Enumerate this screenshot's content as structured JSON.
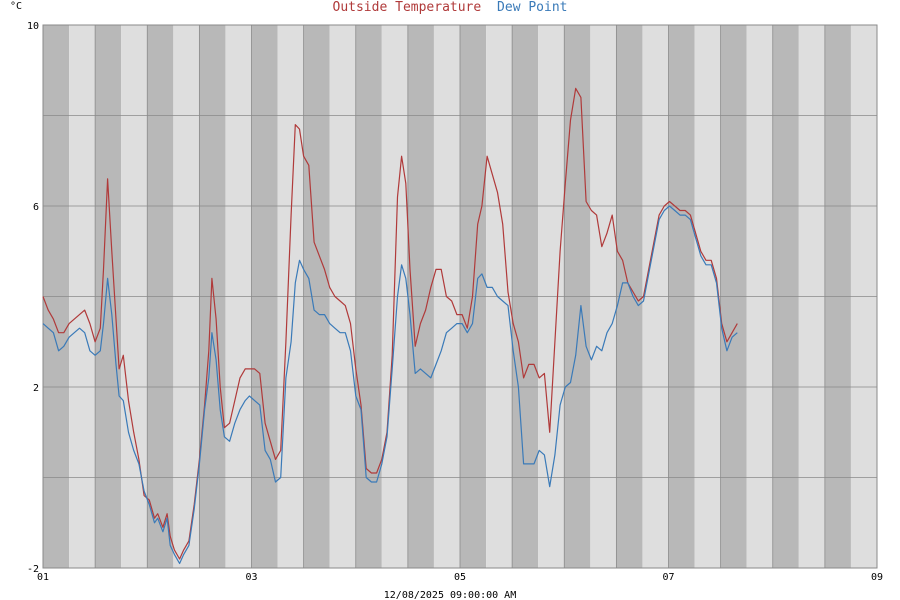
{
  "chart_data": {
    "type": "line",
    "title_parts": [
      {
        "text": "Outside Temperature",
        "color": "#b03a3a"
      },
      {
        "text": "Dew Point",
        "color": "#3a7ab8"
      }
    ],
    "unit": "°C",
    "footer": "12/08/2025 09:00:00 AM",
    "xlim": [
      1,
      9
    ],
    "ylim": [
      -2,
      10
    ],
    "x_ticks": [
      {
        "value": 1,
        "label": "01"
      },
      {
        "value": 3,
        "label": "03"
      },
      {
        "value": 5,
        "label": "05"
      },
      {
        "value": 7,
        "label": "07"
      },
      {
        "value": 9,
        "label": "09"
      }
    ],
    "y_ticks": [
      {
        "value": -2,
        "label": "-2"
      },
      {
        "value": 2,
        "label": "2"
      },
      {
        "value": 6,
        "label": "6"
      },
      {
        "value": 10,
        "label": "10"
      }
    ],
    "grid": true,
    "colors": {
      "band_dark": "#b8b8b8",
      "band_light": "#dedede",
      "grid": "#8a8a8a"
    },
    "series": [
      {
        "name": "Outside Temperature",
        "color": "#b03a3a",
        "points": [
          [
            1.0,
            4.0
          ],
          [
            1.05,
            3.7
          ],
          [
            1.1,
            3.5
          ],
          [
            1.15,
            3.2
          ],
          [
            1.2,
            3.2
          ],
          [
            1.25,
            3.4
          ],
          [
            1.3,
            3.5
          ],
          [
            1.35,
            3.6
          ],
          [
            1.4,
            3.7
          ],
          [
            1.45,
            3.4
          ],
          [
            1.5,
            3.0
          ],
          [
            1.55,
            3.3
          ],
          [
            1.58,
            4.6
          ],
          [
            1.62,
            6.6
          ],
          [
            1.66,
            5.0
          ],
          [
            1.7,
            3.5
          ],
          [
            1.73,
            2.4
          ],
          [
            1.77,
            2.7
          ],
          [
            1.82,
            1.7
          ],
          [
            1.87,
            1.0
          ],
          [
            1.92,
            0.4
          ],
          [
            1.97,
            -0.4
          ],
          [
            2.02,
            -0.5
          ],
          [
            2.07,
            -0.9
          ],
          [
            2.1,
            -0.8
          ],
          [
            2.15,
            -1.1
          ],
          [
            2.19,
            -0.8
          ],
          [
            2.22,
            -1.3
          ],
          [
            2.26,
            -1.6
          ],
          [
            2.31,
            -1.8
          ],
          [
            2.35,
            -1.6
          ],
          [
            2.4,
            -1.4
          ],
          [
            2.45,
            -0.6
          ],
          [
            2.5,
            0.4
          ],
          [
            2.55,
            1.6
          ],
          [
            2.59,
            2.8
          ],
          [
            2.62,
            4.4
          ],
          [
            2.66,
            3.5
          ],
          [
            2.7,
            2.0
          ],
          [
            2.74,
            1.1
          ],
          [
            2.79,
            1.2
          ],
          [
            2.84,
            1.7
          ],
          [
            2.89,
            2.2
          ],
          [
            2.94,
            2.4
          ],
          [
            2.98,
            2.4
          ],
          [
            3.03,
            2.4
          ],
          [
            3.08,
            2.3
          ],
          [
            3.13,
            1.2
          ],
          [
            3.18,
            0.8
          ],
          [
            3.23,
            0.4
          ],
          [
            3.28,
            0.6
          ],
          [
            3.33,
            3.0
          ],
          [
            3.38,
            5.8
          ],
          [
            3.42,
            7.8
          ],
          [
            3.46,
            7.7
          ],
          [
            3.5,
            7.1
          ],
          [
            3.55,
            6.9
          ],
          [
            3.6,
            5.2
          ],
          [
            3.65,
            4.9
          ],
          [
            3.7,
            4.6
          ],
          [
            3.75,
            4.2
          ],
          [
            3.8,
            4.0
          ],
          [
            3.85,
            3.9
          ],
          [
            3.9,
            3.8
          ],
          [
            3.95,
            3.4
          ],
          [
            4.0,
            2.4
          ],
          [
            4.05,
            1.6
          ],
          [
            4.1,
            0.2
          ],
          [
            4.15,
            0.1
          ],
          [
            4.2,
            0.1
          ],
          [
            4.25,
            0.4
          ],
          [
            4.3,
            1.0
          ],
          [
            4.35,
            2.7
          ],
          [
            4.4,
            6.2
          ],
          [
            4.44,
            7.1
          ],
          [
            4.48,
            6.5
          ],
          [
            4.52,
            4.6
          ],
          [
            4.57,
            2.9
          ],
          [
            4.62,
            3.4
          ],
          [
            4.67,
            3.7
          ],
          [
            4.72,
            4.2
          ],
          [
            4.77,
            4.6
          ],
          [
            4.82,
            4.6
          ],
          [
            4.87,
            4.0
          ],
          [
            4.92,
            3.9
          ],
          [
            4.97,
            3.6
          ],
          [
            5.02,
            3.6
          ],
          [
            5.07,
            3.3
          ],
          [
            5.12,
            4.0
          ],
          [
            5.17,
            5.6
          ],
          [
            5.21,
            6.0
          ],
          [
            5.26,
            7.1
          ],
          [
            5.31,
            6.7
          ],
          [
            5.36,
            6.3
          ],
          [
            5.41,
            5.6
          ],
          [
            5.46,
            4.1
          ],
          [
            5.51,
            3.4
          ],
          [
            5.56,
            3.0
          ],
          [
            5.61,
            2.2
          ],
          [
            5.66,
            2.5
          ],
          [
            5.71,
            2.5
          ],
          [
            5.76,
            2.2
          ],
          [
            5.81,
            2.3
          ],
          [
            5.86,
            1.0
          ],
          [
            5.91,
            3.0
          ],
          [
            5.96,
            5.0
          ],
          [
            6.01,
            6.5
          ],
          [
            6.06,
            7.9
          ],
          [
            6.11,
            8.6
          ],
          [
            6.16,
            8.4
          ],
          [
            6.21,
            6.1
          ],
          [
            6.26,
            5.9
          ],
          [
            6.31,
            5.8
          ],
          [
            6.36,
            5.1
          ],
          [
            6.41,
            5.4
          ],
          [
            6.46,
            5.8
          ],
          [
            6.51,
            5.0
          ],
          [
            6.56,
            4.8
          ],
          [
            6.61,
            4.3
          ],
          [
            6.66,
            4.1
          ],
          [
            6.71,
            3.9
          ],
          [
            6.76,
            4.0
          ],
          [
            6.81,
            4.6
          ],
          [
            6.86,
            5.2
          ],
          [
            6.91,
            5.8
          ],
          [
            6.96,
            6.0
          ],
          [
            7.01,
            6.1
          ],
          [
            7.06,
            6.0
          ],
          [
            7.11,
            5.9
          ],
          [
            7.16,
            5.9
          ],
          [
            7.21,
            5.8
          ],
          [
            7.26,
            5.4
          ],
          [
            7.31,
            5.0
          ],
          [
            7.36,
            4.8
          ],
          [
            7.41,
            4.8
          ],
          [
            7.46,
            4.4
          ],
          [
            7.51,
            3.4
          ],
          [
            7.56,
            3.0
          ],
          [
            7.61,
            3.2
          ],
          [
            7.66,
            3.4
          ]
        ]
      },
      {
        "name": "Dew Point",
        "color": "#3a7ab8",
        "points": [
          [
            1.0,
            3.4
          ],
          [
            1.05,
            3.3
          ],
          [
            1.1,
            3.2
          ],
          [
            1.15,
            2.8
          ],
          [
            1.2,
            2.9
          ],
          [
            1.25,
            3.1
          ],
          [
            1.3,
            3.2
          ],
          [
            1.35,
            3.3
          ],
          [
            1.4,
            3.2
          ],
          [
            1.45,
            2.8
          ],
          [
            1.5,
            2.7
          ],
          [
            1.55,
            2.8
          ],
          [
            1.58,
            3.4
          ],
          [
            1.62,
            4.4
          ],
          [
            1.66,
            3.6
          ],
          [
            1.7,
            2.5
          ],
          [
            1.73,
            1.8
          ],
          [
            1.77,
            1.7
          ],
          [
            1.82,
            1.0
          ],
          [
            1.87,
            0.6
          ],
          [
            1.92,
            0.3
          ],
          [
            1.97,
            -0.3
          ],
          [
            2.02,
            -0.6
          ],
          [
            2.07,
            -1.0
          ],
          [
            2.1,
            -0.9
          ],
          [
            2.15,
            -1.2
          ],
          [
            2.19,
            -0.9
          ],
          [
            2.22,
            -1.5
          ],
          [
            2.26,
            -1.7
          ],
          [
            2.31,
            -1.9
          ],
          [
            2.35,
            -1.7
          ],
          [
            2.4,
            -1.5
          ],
          [
            2.45,
            -0.7
          ],
          [
            2.5,
            0.3
          ],
          [
            2.55,
            1.5
          ],
          [
            2.59,
            2.2
          ],
          [
            2.62,
            3.2
          ],
          [
            2.66,
            2.6
          ],
          [
            2.7,
            1.5
          ],
          [
            2.74,
            0.9
          ],
          [
            2.79,
            0.8
          ],
          [
            2.84,
            1.2
          ],
          [
            2.89,
            1.5
          ],
          [
            2.94,
            1.7
          ],
          [
            2.98,
            1.8
          ],
          [
            3.03,
            1.7
          ],
          [
            3.08,
            1.6
          ],
          [
            3.13,
            0.6
          ],
          [
            3.18,
            0.4
          ],
          [
            3.23,
            -0.1
          ],
          [
            3.28,
            0.0
          ],
          [
            3.33,
            2.2
          ],
          [
            3.38,
            3.0
          ],
          [
            3.42,
            4.3
          ],
          [
            3.46,
            4.8
          ],
          [
            3.5,
            4.6
          ],
          [
            3.55,
            4.4
          ],
          [
            3.6,
            3.7
          ],
          [
            3.65,
            3.6
          ],
          [
            3.7,
            3.6
          ],
          [
            3.75,
            3.4
          ],
          [
            3.8,
            3.3
          ],
          [
            3.85,
            3.2
          ],
          [
            3.9,
            3.2
          ],
          [
            3.95,
            2.8
          ],
          [
            4.0,
            1.8
          ],
          [
            4.05,
            1.5
          ],
          [
            4.1,
            0.0
          ],
          [
            4.15,
            -0.1
          ],
          [
            4.2,
            -0.1
          ],
          [
            4.25,
            0.3
          ],
          [
            4.3,
            0.9
          ],
          [
            4.35,
            2.4
          ],
          [
            4.4,
            4.0
          ],
          [
            4.44,
            4.7
          ],
          [
            4.48,
            4.4
          ],
          [
            4.52,
            3.6
          ],
          [
            4.57,
            2.3
          ],
          [
            4.62,
            2.4
          ],
          [
            4.67,
            2.3
          ],
          [
            4.72,
            2.2
          ],
          [
            4.77,
            2.5
          ],
          [
            4.82,
            2.8
          ],
          [
            4.87,
            3.2
          ],
          [
            4.92,
            3.3
          ],
          [
            4.97,
            3.4
          ],
          [
            5.02,
            3.4
          ],
          [
            5.07,
            3.2
          ],
          [
            5.12,
            3.4
          ],
          [
            5.17,
            4.4
          ],
          [
            5.21,
            4.5
          ],
          [
            5.26,
            4.2
          ],
          [
            5.31,
            4.2
          ],
          [
            5.36,
            4.0
          ],
          [
            5.41,
            3.9
          ],
          [
            5.46,
            3.8
          ],
          [
            5.51,
            2.8
          ],
          [
            5.56,
            2.0
          ],
          [
            5.61,
            0.3
          ],
          [
            5.66,
            0.3
          ],
          [
            5.71,
            0.3
          ],
          [
            5.76,
            0.6
          ],
          [
            5.81,
            0.5
          ],
          [
            5.86,
            -0.2
          ],
          [
            5.91,
            0.5
          ],
          [
            5.96,
            1.6
          ],
          [
            6.01,
            2.0
          ],
          [
            6.06,
            2.1
          ],
          [
            6.11,
            2.7
          ],
          [
            6.16,
            3.8
          ],
          [
            6.21,
            2.9
          ],
          [
            6.26,
            2.6
          ],
          [
            6.31,
            2.9
          ],
          [
            6.36,
            2.8
          ],
          [
            6.41,
            3.2
          ],
          [
            6.46,
            3.4
          ],
          [
            6.51,
            3.8
          ],
          [
            6.56,
            4.3
          ],
          [
            6.61,
            4.3
          ],
          [
            6.66,
            4.0
          ],
          [
            6.71,
            3.8
          ],
          [
            6.76,
            3.9
          ],
          [
            6.81,
            4.5
          ],
          [
            6.86,
            5.1
          ],
          [
            6.91,
            5.7
          ],
          [
            6.96,
            5.9
          ],
          [
            7.01,
            6.0
          ],
          [
            7.06,
            5.9
          ],
          [
            7.11,
            5.8
          ],
          [
            7.16,
            5.8
          ],
          [
            7.21,
            5.7
          ],
          [
            7.26,
            5.3
          ],
          [
            7.31,
            4.9
          ],
          [
            7.36,
            4.7
          ],
          [
            7.41,
            4.7
          ],
          [
            7.46,
            4.3
          ],
          [
            7.51,
            3.3
          ],
          [
            7.56,
            2.8
          ],
          [
            7.61,
            3.1
          ],
          [
            7.66,
            3.2
          ]
        ]
      }
    ]
  }
}
